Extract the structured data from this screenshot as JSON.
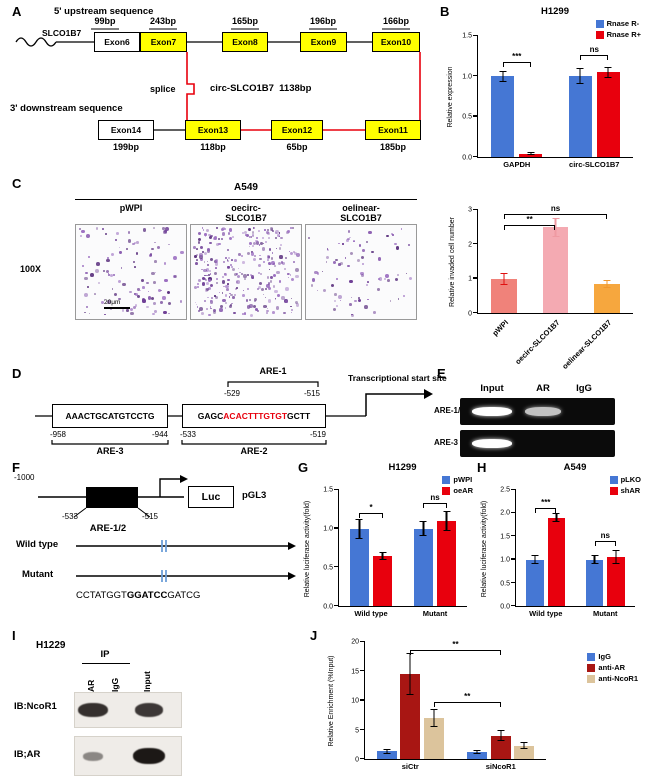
{
  "panels": {
    "A": "A",
    "B": "B",
    "C": "C",
    "D": "D",
    "E": "E",
    "F": "F",
    "G": "G",
    "H": "H",
    "I": "I",
    "J": "J"
  },
  "panelA": {
    "upstream": "5' upstream sequence",
    "gene": "SLCO1B7",
    "top_bp": [
      "99bp",
      "243bp",
      "165bp",
      "196bp",
      "166bp"
    ],
    "top_exons": [
      "Exon6",
      "Exon7",
      "Exon8",
      "Exon9",
      "Exon10"
    ],
    "splice": "splice",
    "circ": "circ-SLCO1B7  1138bp",
    "downstream": "3' downstream sequence",
    "bottom_exons": [
      "Exon14",
      "Exon13",
      "Exon12",
      "Exon11"
    ],
    "bottom_bp": [
      "199bp",
      "118bp",
      "65bp",
      "185bp"
    ]
  },
  "panelC": {
    "cell_line": "A549",
    "magnification": "100X",
    "scale_bar": "20μm",
    "images": [
      {
        "label": "pWPI",
        "dot_count": 110
      },
      {
        "label": "oecirc-SLCO1B7",
        "dot_count": 300
      },
      {
        "label": "oelinear-SLCO1B7",
        "dot_count": 80
      }
    ],
    "dot_colors": [
      "#6f3f96",
      "#8a5cb0",
      "#5d3380",
      "#9a6cc0"
    ]
  },
  "panelD": {
    "are1": "ARE-1",
    "are1_start": "-529",
    "are1_end": "-515",
    "box1_seq": "AAACTGCATGTCCTG",
    "box1_start": "-958",
    "box1_end": "-944",
    "are3": "ARE-3",
    "box2_pre": "GAGC",
    "box2_red": "ACACTTTGTGT",
    "box2_post": "GCTT",
    "box2_start": "-533",
    "box2_end": "-519",
    "are2": "ARE-2",
    "tss": "Transcriptional start site",
    "highlight_color": "#e8000d"
  },
  "panelE": {
    "lanes": [
      "Input",
      "AR",
      "IgG"
    ],
    "rows": [
      {
        "label": "ARE-1/2",
        "bands": [
          {
            "lane": 0,
            "intensity": 1
          },
          {
            "lane": 1,
            "intensity": 0.75
          }
        ]
      },
      {
        "label": "ARE-3",
        "bands": [
          {
            "lane": 0,
            "intensity": 1
          }
        ]
      }
    ]
  },
  "panelF": {
    "pos_start": "-1000",
    "luc": "Luc",
    "vector": "pGL3",
    "are_start": "-533",
    "are_end": "-515",
    "are_label": "ARE-1/2",
    "wildtype": "Wild type",
    "mutant": "Mutant",
    "mut_pre": "CCTATGGT",
    "mut_bold": "GGATCC",
    "mut_post": "GATCG"
  },
  "panelI": {
    "cell_line": "H1229",
    "ip": "IP",
    "lanes": [
      "AR",
      "IgG",
      "Input"
    ],
    "blots": [
      {
        "label": "IB:NcoR1",
        "bands": [
          {
            "lane": 0,
            "intensity": 0.85
          },
          {
            "lane": 2,
            "intensity": 0.8
          }
        ]
      },
      {
        "label": "IB;AR",
        "bands": [
          {
            "lane": 0,
            "intensity": 0.3
          },
          {
            "lane": 2,
            "intensity": 1
          }
        ]
      }
    ]
  },
  "chart_data": [
    {
      "id": "B",
      "type": "bar",
      "title": "H1299",
      "categories": [
        "GAPDH",
        "circ-SLCO1B7"
      ],
      "series": [
        {
          "name": "Rnase R-",
          "color": "#4577d4",
          "values": [
            1.0,
            1.0
          ],
          "errors": [
            0.07,
            0.1
          ]
        },
        {
          "name": "Rnase R+",
          "color": "#e8000d",
          "values": [
            0.04,
            1.05
          ],
          "errors": [
            0.02,
            0.07
          ]
        }
      ],
      "ylabel": "Relative expression",
      "ylim": [
        0,
        1.5
      ],
      "ytick_labels": [
        "0.0",
        "0.5",
        "1.0",
        "1.5"
      ],
      "sig": [
        {
          "label": "***",
          "from": [
            0,
            0
          ],
          "to": [
            0,
            1
          ],
          "level": 1.18
        },
        {
          "label": "ns",
          "from": [
            1,
            0
          ],
          "to": [
            1,
            1
          ],
          "level": 1.26
        }
      ],
      "legend_pos": "top-right"
    },
    {
      "id": "C",
      "type": "bar",
      "categories": [
        "pWPI",
        "oecirc-SLCO1B7",
        "oelinear-SLCO1B7"
      ],
      "values": [
        1.0,
        2.5,
        0.85
      ],
      "errors": [
        0.18,
        0.28,
        0.12
      ],
      "bar_colors": [
        "#f0827a",
        "#f4aab2",
        "#f6a73e"
      ],
      "err_colors": [
        "#e01010",
        "#ef9aa2",
        "#f0982e"
      ],
      "ylabel": "Relative invaded cell number",
      "ylim": [
        0,
        3
      ],
      "ytick_labels": [
        "0",
        "1",
        "2",
        "3"
      ],
      "xlabel_rotate": true,
      "sig": [
        {
          "label": "**",
          "from": [
            0,
            0
          ],
          "to": [
            1,
            0
          ],
          "level": 2.55
        },
        {
          "label": "ns",
          "from": [
            0,
            0
          ],
          "to": [
            2,
            0
          ],
          "level": 2.88
        }
      ]
    },
    {
      "id": "G",
      "type": "bar",
      "title": "H1299",
      "categories": [
        "Wild type",
        "Mutant"
      ],
      "series": [
        {
          "name": "pWPI",
          "color": "#4577d4",
          "values": [
            1.0,
            1.0
          ],
          "errors": [
            0.13,
            0.1
          ]
        },
        {
          "name": "oeAR",
          "color": "#e8000d",
          "values": [
            0.65,
            1.1
          ],
          "errors": [
            0.05,
            0.13
          ]
        }
      ],
      "ylabel": "Relative luciferase activity(fold)",
      "ylim": [
        0,
        1.5
      ],
      "ytick_labels": [
        "0.0",
        "0.5",
        "1.0",
        "1.5"
      ],
      "sig": [
        {
          "label": "*",
          "from": [
            0,
            0
          ],
          "to": [
            0,
            1
          ],
          "level": 1.2
        },
        {
          "label": "ns",
          "from": [
            1,
            0
          ],
          "to": [
            1,
            1
          ],
          "level": 1.33
        }
      ]
    },
    {
      "id": "H",
      "type": "bar",
      "title": "A549",
      "categories": [
        "Wild type",
        "Mutant"
      ],
      "series": [
        {
          "name": "pLKO",
          "color": "#4577d4",
          "values": [
            1.0,
            1.0
          ],
          "errors": [
            0.1,
            0.1
          ]
        },
        {
          "name": "shAR",
          "color": "#e8000d",
          "values": [
            1.9,
            1.05
          ],
          "errors": [
            0.1,
            0.15
          ]
        }
      ],
      "ylabel": "Relative luciferase activity(fold)",
      "ylim": [
        0,
        2.5
      ],
      "ytick_labels": [
        "0.0",
        "0.5",
        "1.0",
        "1.5",
        "2.0",
        "2.5"
      ],
      "sig": [
        {
          "label": "***",
          "from": [
            0,
            0
          ],
          "to": [
            0,
            1
          ],
          "level": 2.12
        },
        {
          "label": "ns",
          "from": [
            1,
            0
          ],
          "to": [
            1,
            1
          ],
          "level": 1.4
        }
      ]
    },
    {
      "id": "J",
      "type": "bar",
      "categories": [
        "siCtr",
        "siNcoR1"
      ],
      "series": [
        {
          "name": "IgG",
          "color": "#4577d4",
          "values": [
            1.3,
            1.2
          ],
          "errors": [
            0.4,
            0.3
          ]
        },
        {
          "name": "anti-AR",
          "color": "#a81613",
          "values": [
            14.5,
            4.0
          ],
          "errors": [
            3.6,
            0.9
          ]
        },
        {
          "name": "anti-NcoR1",
          "color": "#dcc49c",
          "values": [
            7.0,
            2.3
          ],
          "errors": [
            1.6,
            0.6
          ]
        }
      ],
      "ylabel": "Relative Enrichment (%Input)",
      "ylim": [
        0,
        20
      ],
      "ytick_labels": [
        "0",
        "5",
        "10",
        "15",
        "20"
      ],
      "sig": [
        {
          "label": "**",
          "from": [
            0,
            1
          ],
          "to": [
            1,
            1
          ],
          "level": 18.6
        },
        {
          "label": "**",
          "from": [
            0,
            2
          ],
          "to": [
            1,
            1
          ],
          "level": 9.8
        }
      ],
      "legend_pos": "right"
    }
  ]
}
